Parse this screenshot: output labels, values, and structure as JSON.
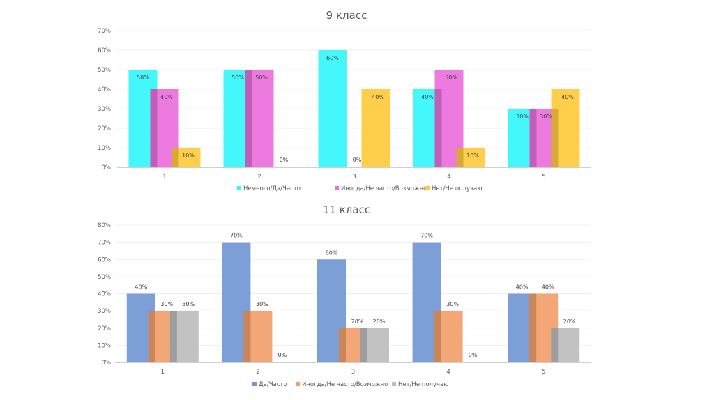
{
  "chart_data": [
    {
      "type": "bar",
      "title": "9 класс",
      "xlabel": "",
      "ylabel": "",
      "categories": [
        "1",
        "2",
        "3",
        "4",
        "5"
      ],
      "ylim": [
        0,
        70
      ],
      "yticks": [
        "0%",
        "10%",
        "20%",
        "30%",
        "40%",
        "50%",
        "60%",
        "70%"
      ],
      "grid": true,
      "legend_position": "bottom",
      "series": [
        {
          "name": "Немного/Да/Часто",
          "color": "#33F6FA",
          "values": [
            50,
            50,
            60,
            40,
            30
          ],
          "labels": [
            "50%",
            "50%",
            "60%",
            "40%",
            "30%"
          ]
        },
        {
          "name": "Иногда/Не часто/Возможно",
          "color": "#EA6FDC",
          "values": [
            40,
            50,
            0,
            50,
            30
          ],
          "labels": [
            "40%",
            "50%",
            "0%",
            "50%",
            "30%"
          ]
        },
        {
          "name": "Нет/Не получаю",
          "color": "#FFCB3D",
          "values": [
            10,
            0,
            40,
            10,
            40
          ],
          "labels": [
            "10%",
            "0%",
            "40%",
            "10%",
            "40%"
          ]
        }
      ]
    },
    {
      "type": "bar",
      "title": "11 класс",
      "xlabel": "",
      "ylabel": "",
      "categories": [
        "1",
        "2",
        "3",
        "4",
        "5"
      ],
      "ylim": [
        0,
        80
      ],
      "yticks": [
        "0%",
        "10%",
        "20%",
        "30%",
        "40%",
        "50%",
        "60%",
        "70%",
        "80%"
      ],
      "grid": true,
      "legend_position": "bottom",
      "series": [
        {
          "name": "Да/Часто",
          "color": "#7297D5",
          "values": [
            40,
            70,
            60,
            70,
            40
          ],
          "labels": [
            "40%",
            "70%",
            "60%",
            "70%",
            "40%"
          ]
        },
        {
          "name": "Иногда/Не часто/Возможно",
          "color": "#F2A06A",
          "values": [
            30,
            30,
            20,
            30,
            40
          ],
          "labels": [
            "30%",
            "30%",
            "20%",
            "30%",
            "40%"
          ]
        },
        {
          "name": "Нет/Не получаю",
          "color": "#BDBDBD",
          "values": [
            30,
            0,
            20,
            0,
            20
          ],
          "labels": [
            "30%",
            "0%",
            "20%",
            "0%",
            "20%"
          ]
        }
      ]
    }
  ]
}
